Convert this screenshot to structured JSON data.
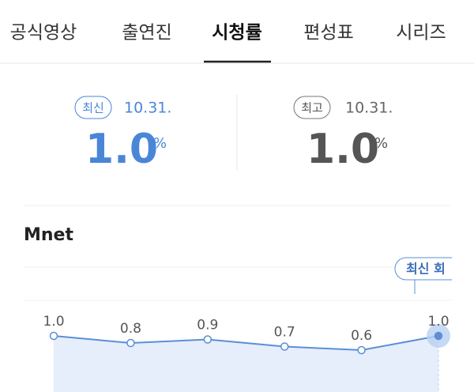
{
  "tabs": [
    "공식영상",
    "출연진",
    "시청률",
    "편성표",
    "시리즈"
  ],
  "latest": {
    "badge": "최신",
    "date": "10.31.",
    "value": "1.0",
    "unit": "%"
  },
  "best": {
    "badge": "최고",
    "date": "10.31.",
    "value": "1.0",
    "unit": "%"
  },
  "chart_data": {
    "type": "line",
    "title": "Mnet",
    "values": [
      1.0,
      0.8,
      0.9,
      0.7,
      0.6,
      1.0
    ],
    "value_labels": [
      "1.0",
      "0.8",
      "0.9",
      "0.7",
      "0.6",
      "1.0"
    ],
    "annotation": "최신 회",
    "color": "#5b8fd6",
    "ylim": [
      0,
      3
    ]
  }
}
